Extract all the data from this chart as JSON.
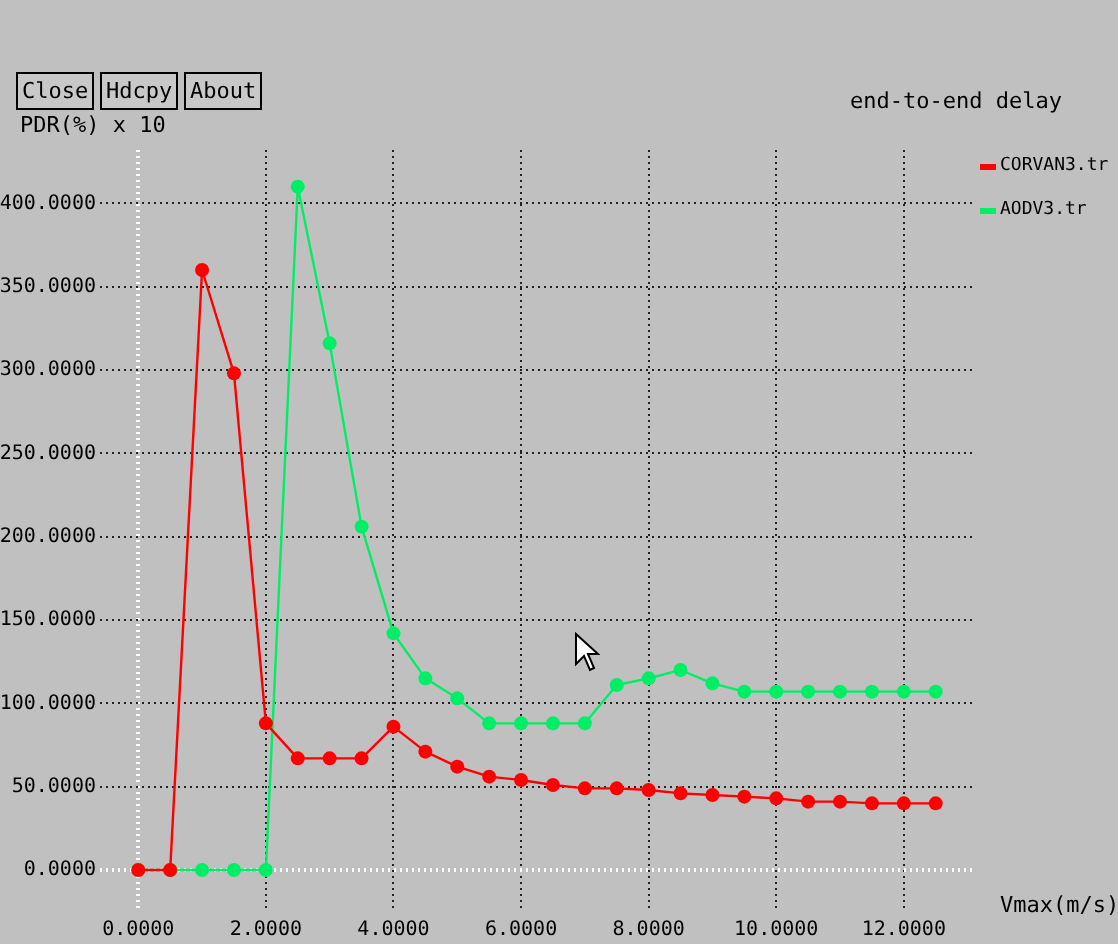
{
  "chart_data": {
    "type": "line",
    "title": "end-to-end delay",
    "xlabel": "Vmax(m/s)",
    "ylabel": "PDR(%) x 10",
    "annotations": [
      "Close",
      "Hdcpy",
      "About"
    ],
    "x": [
      0,
      0.5,
      1,
      1.5,
      2,
      2.5,
      3,
      3.5,
      4,
      4.5,
      5,
      5.5,
      6,
      6.5,
      7,
      7.5,
      8,
      8.5,
      9,
      9.5,
      10,
      10.5,
      11,
      11.5,
      12,
      12.5
    ],
    "series": [
      {
        "name": "CORVAN3.tr",
        "color": "#ff0000",
        "values": [
          0,
          0,
          360,
          298,
          88,
          67,
          67,
          67,
          86,
          71,
          62,
          56,
          54,
          51,
          49,
          49,
          48,
          46,
          45,
          44,
          43,
          41,
          41,
          40,
          40,
          40
        ]
      },
      {
        "name": "AODV3.tr",
        "color": "#00ee66",
        "values": [
          0,
          0,
          0,
          0,
          0,
          410,
          316,
          206,
          142,
          115,
          103,
          88,
          88,
          88,
          88,
          111,
          115,
          120,
          112,
          107,
          107,
          107,
          107,
          107,
          107,
          107
        ]
      }
    ],
    "xlim": [
      -0.6,
      13.1
    ],
    "ylim": [
      -24,
      432
    ],
    "xticks": [
      {
        "value": 0,
        "label": "0.0000"
      },
      {
        "value": 2,
        "label": "2.0000"
      },
      {
        "value": 4,
        "label": "4.0000"
      },
      {
        "value": 6,
        "label": "6.0000"
      },
      {
        "value": 8,
        "label": "8.0000"
      },
      {
        "value": 10,
        "label": "10.0000"
      },
      {
        "value": 12,
        "label": "12.0000"
      }
    ],
    "yticks": [
      {
        "value": 0,
        "label": "0.0000"
      },
      {
        "value": 50,
        "label": "50.0000"
      },
      {
        "value": 100,
        "label": "100.0000"
      },
      {
        "value": 150,
        "label": "150.0000"
      },
      {
        "value": 200,
        "label": "200.0000"
      },
      {
        "value": 250,
        "label": "250.0000"
      },
      {
        "value": 300,
        "label": "300.0000"
      },
      {
        "value": 350,
        "label": "350.0000"
      },
      {
        "value": 400,
        "label": "400.0000"
      }
    ],
    "grid": true,
    "legend": "right",
    "marker": "circle",
    "line_style": "solid"
  }
}
